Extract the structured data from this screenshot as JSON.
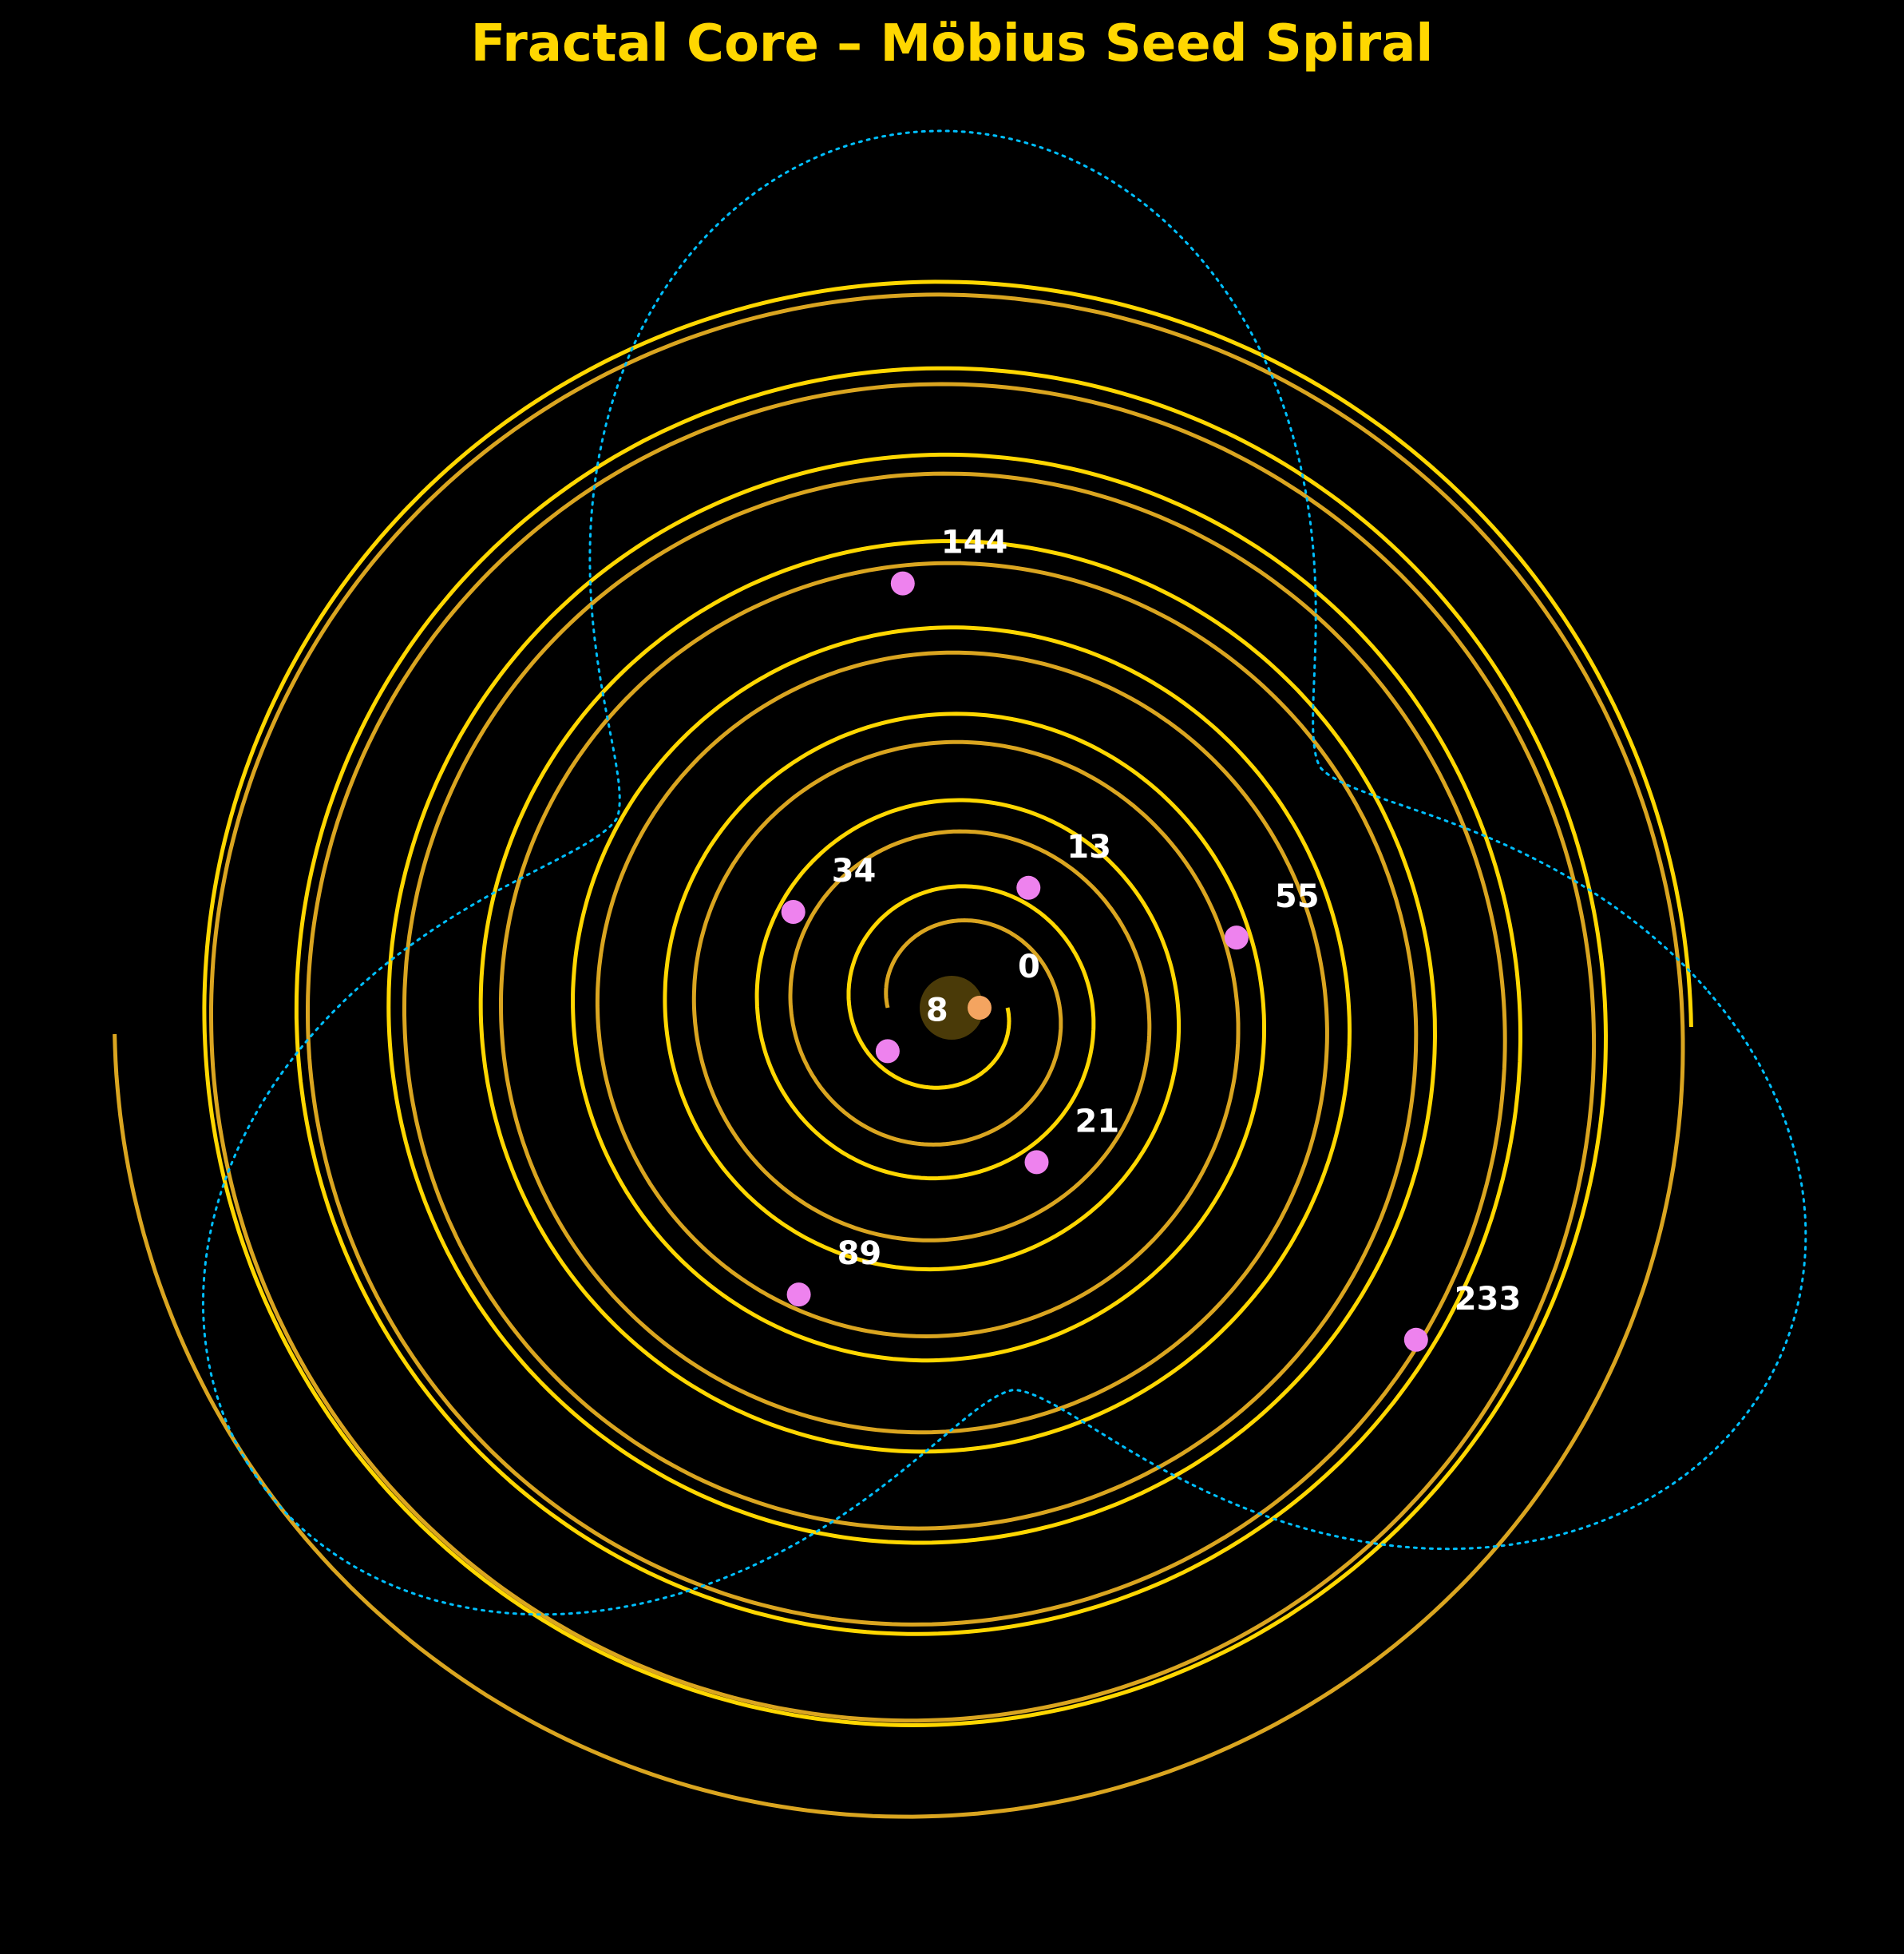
{
  "chart_data": {
    "type": "scatter",
    "title": "Fractal Core – Möbius Seed Spiral",
    "xlabel": "",
    "ylabel": "",
    "axes_visible": false,
    "grid": false,
    "background_color": "#000000",
    "colors": {
      "title": "#FFD700",
      "spiral_primary": "#FFD700",
      "spiral_secondary": "#DAA520",
      "mobius_curve": "#00BFFF",
      "seed_points": "#EE82EE",
      "seed_zero": "#F4A460",
      "core": "#4A3A08",
      "labels": "#FFFFFF"
    },
    "seed_points": [
      {
        "label": "0",
        "value": 0
      },
      {
        "label": "8",
        "value": 8
      },
      {
        "label": "13",
        "value": 13
      },
      {
        "label": "21",
        "value": 21
      },
      {
        "label": "34",
        "value": 34
      },
      {
        "label": "55",
        "value": 55
      },
      {
        "label": "89",
        "value": 89
      },
      {
        "label": "144",
        "value": 144
      },
      {
        "label": "233",
        "value": 233
      }
    ],
    "series": [
      {
        "style": "golden spiral arms, alternating gold shades"
      },
      {
        "style": "dotted cyan Möbius rosette curve"
      }
    ]
  }
}
